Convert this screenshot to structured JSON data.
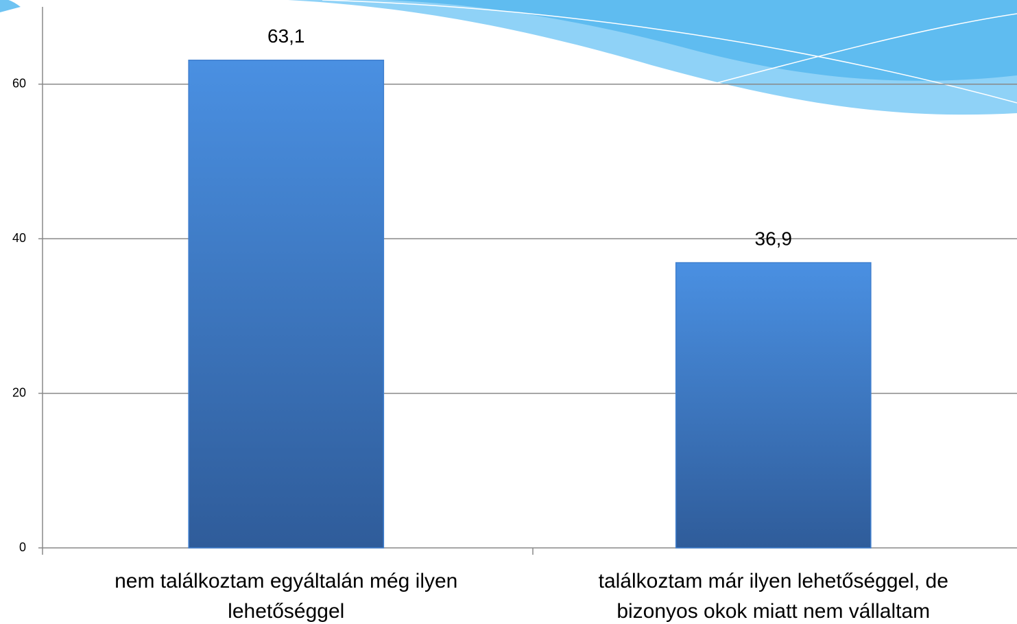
{
  "chart_data": {
    "type": "bar",
    "categories": [
      "nem találkoztam egyáltalán még ilyen lehetőséggel",
      "találkoztam már ilyen lehetőséggel, de bizonyos okok miatt nem vállaltam"
    ],
    "values": [
      63.1,
      36.9
    ],
    "value_labels": [
      "63,1",
      "36,9"
    ],
    "color": "#3f7fcf",
    "ylim": [
      0,
      70
    ],
    "yticks": [
      0,
      20,
      40,
      60
    ],
    "grid": true
  }
}
